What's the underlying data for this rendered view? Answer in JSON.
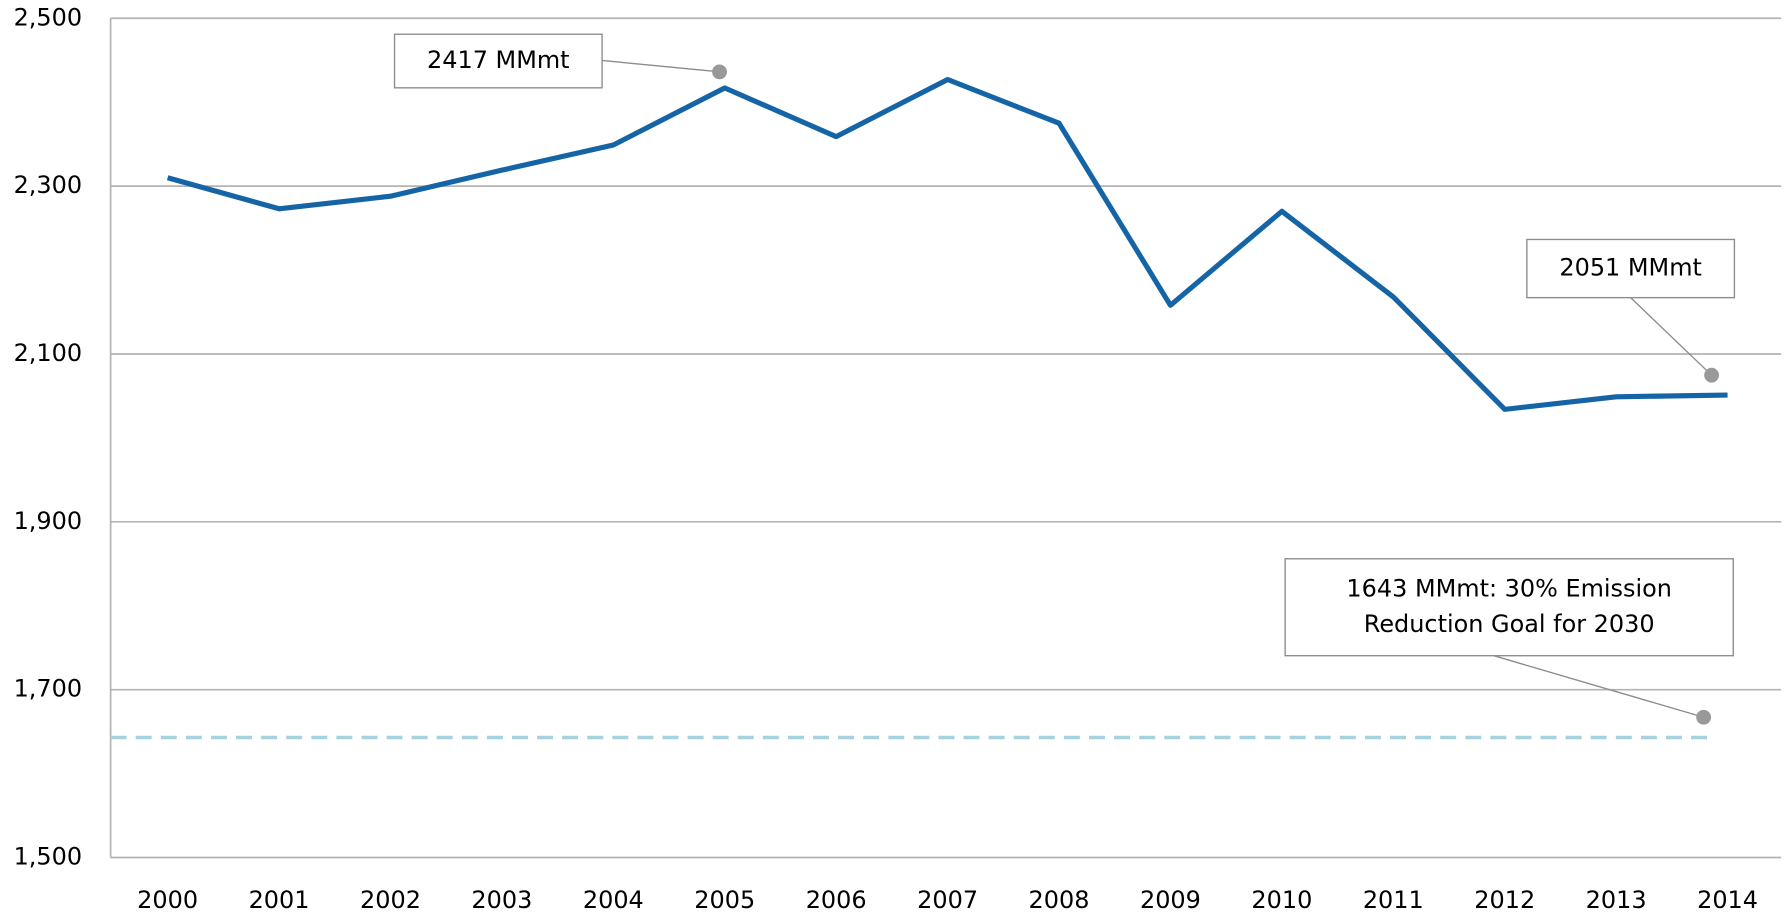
{
  "chart_data": {
    "type": "line",
    "categories": [
      "2000",
      "2001",
      "2002",
      "2003",
      "2004",
      "2005",
      "2006",
      "2007",
      "2008",
      "2009",
      "2010",
      "2011",
      "2012",
      "2013",
      "2014"
    ],
    "series": [
      {
        "color": "#1565a6",
        "values": [
          2310,
          2273,
          2288,
          2319,
          2349,
          2417,
          2359,
          2427,
          2375,
          2158,
          2270,
          2168,
          2034,
          2049,
          2051
        ]
      }
    ],
    "reference_line": {
      "value": 1643,
      "color": "#a6d2e0",
      "style": "dashed"
    },
    "ylim": [
      1500,
      2500
    ],
    "yticks": [
      {
        "value": 1500,
        "label": "1,500"
      },
      {
        "value": 1700,
        "label": "1,700"
      },
      {
        "value": 1900,
        "label": "1,900"
      },
      {
        "value": 2100,
        "label": "2,100"
      },
      {
        "value": 2300,
        "label": "2,300"
      },
      {
        "value": 2500,
        "label": "2,500"
      }
    ],
    "grid": true,
    "annotations": [
      {
        "lines": [
          "2417 MMmt"
        ]
      },
      {
        "lines": [
          "2051 MMmt"
        ]
      },
      {
        "lines": [
          "1643 MMmt: 30% Emission",
          "Reduction Goal for 2030"
        ]
      }
    ]
  }
}
